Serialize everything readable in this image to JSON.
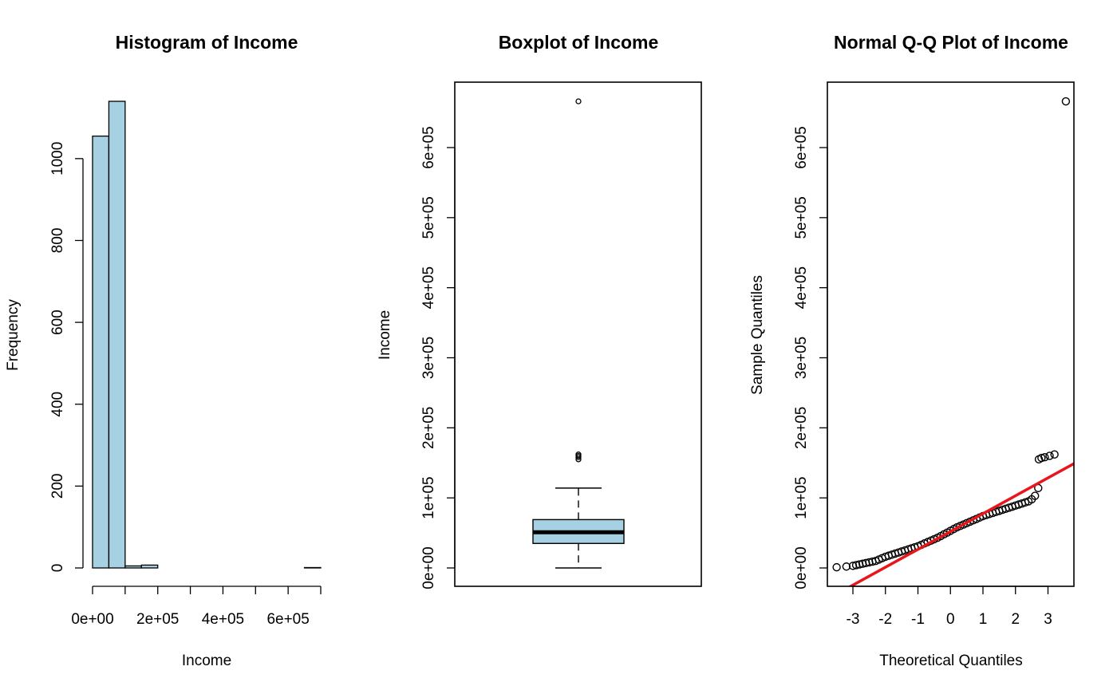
{
  "chart_data": [
    {
      "type": "bar",
      "title": "Histogram of Income",
      "xlabel": "Income",
      "ylabel": "Frequency",
      "bin_edges": [
        0,
        50000,
        100000,
        150000,
        200000,
        250000,
        300000,
        350000,
        400000,
        450000,
        500000,
        550000,
        600000,
        650000,
        700000
      ],
      "values": [
        1055,
        1140,
        5,
        7,
        0,
        0,
        0,
        0,
        0,
        0,
        0,
        0,
        0,
        1
      ],
      "xlim": [
        0,
        700000
      ],
      "ylim": [
        0,
        1140
      ],
      "x_ticks": [
        {
          "value": 0,
          "label": "0e+00"
        },
        {
          "value": 200000,
          "label": "2e+05"
        },
        {
          "value": 400000,
          "label": "4e+05"
        },
        {
          "value": 600000,
          "label": "6e+05"
        }
      ],
      "x_minor_ticks": [
        100000,
        300000,
        500000,
        700000
      ],
      "y_ticks": [
        {
          "value": 0,
          "label": "0"
        },
        {
          "value": 200,
          "label": "200"
        },
        {
          "value": 400,
          "label": "400"
        },
        {
          "value": 600,
          "label": "600"
        },
        {
          "value": 800,
          "label": "800"
        },
        {
          "value": 1000,
          "label": "1000"
        }
      ],
      "bar_color": "#A6D1E3"
    },
    {
      "type": "box",
      "title": "Boxplot of Income",
      "xlabel": "",
      "ylabel": "Income",
      "ylim": [
        -25000,
        695000
      ],
      "box": {
        "whisker_low": 0,
        "q1": 35000,
        "median": 51000,
        "q3": 69000,
        "whisker_high": 114000,
        "outliers": [
          155000,
          158000,
          160000,
          162000,
          666000
        ]
      },
      "y_ticks": [
        {
          "value": 0,
          "label": "0e+00"
        },
        {
          "value": 100000,
          "label": "1e+05"
        },
        {
          "value": 200000,
          "label": "2e+05"
        },
        {
          "value": 300000,
          "label": "3e+05"
        },
        {
          "value": 400000,
          "label": "4e+05"
        },
        {
          "value": 500000,
          "label": "5e+05"
        },
        {
          "value": 600000,
          "label": "6e+05"
        }
      ],
      "box_color": "#A6D1E3"
    },
    {
      "type": "scatter",
      "title": "Normal Q-Q Plot of Income",
      "xlabel": "Theoretical Quantiles",
      "ylabel": "Sample Quantiles",
      "xlim": [
        -3.75,
        3.85
      ],
      "ylim": [
        -25000,
        695000
      ],
      "x_ticks": [
        {
          "value": -3,
          "label": "-3"
        },
        {
          "value": -2,
          "label": "-2"
        },
        {
          "value": -1,
          "label": "-1"
        },
        {
          "value": 0,
          "label": "0"
        },
        {
          "value": 1,
          "label": "1"
        },
        {
          "value": 2,
          "label": "2"
        },
        {
          "value": 3,
          "label": "3"
        }
      ],
      "y_ticks": [
        {
          "value": 0,
          "label": "0e+00"
        },
        {
          "value": 100000,
          "label": "1e+05"
        },
        {
          "value": 200000,
          "label": "2e+05"
        },
        {
          "value": 300000,
          "label": "3e+05"
        },
        {
          "value": 400000,
          "label": "4e+05"
        },
        {
          "value": 500000,
          "label": "5e+05"
        },
        {
          "value": 600000,
          "label": "6e+05"
        }
      ],
      "reference_line": {
        "intercept": 52000,
        "slope": 25500,
        "color": "#E8161B"
      },
      "points": [
        {
          "x": -3.5,
          "y": 1000
        },
        {
          "x": -3.2,
          "y": 2000
        },
        {
          "x": -3.0,
          "y": 3000
        },
        {
          "x": -2.9,
          "y": 4000
        },
        {
          "x": -2.8,
          "y": 5000
        },
        {
          "x": -2.7,
          "y": 6000
        },
        {
          "x": -2.6,
          "y": 7000
        },
        {
          "x": -2.5,
          "y": 8000
        },
        {
          "x": -2.4,
          "y": 9000
        },
        {
          "x": -2.3,
          "y": 10000
        },
        {
          "x": -2.2,
          "y": 12000
        },
        {
          "x": -2.1,
          "y": 14000
        },
        {
          "x": -2.0,
          "y": 16000
        },
        {
          "x": -1.9,
          "y": 17500
        },
        {
          "x": -1.8,
          "y": 19000
        },
        {
          "x": -1.7,
          "y": 20500
        },
        {
          "x": -1.6,
          "y": 22000
        },
        {
          "x": -1.5,
          "y": 23500
        },
        {
          "x": -1.4,
          "y": 25000
        },
        {
          "x": -1.3,
          "y": 26500
        },
        {
          "x": -1.2,
          "y": 28000
        },
        {
          "x": -1.1,
          "y": 29500
        },
        {
          "x": -1.0,
          "y": 31000
        },
        {
          "x": -0.9,
          "y": 33000
        },
        {
          "x": -0.8,
          "y": 35000
        },
        {
          "x": -0.7,
          "y": 37000
        },
        {
          "x": -0.6,
          "y": 39000
        },
        {
          "x": -0.5,
          "y": 41000
        },
        {
          "x": -0.4,
          "y": 43000
        },
        {
          "x": -0.3,
          "y": 45500
        },
        {
          "x": -0.2,
          "y": 48000
        },
        {
          "x": -0.1,
          "y": 50500
        },
        {
          "x": 0.0,
          "y": 53000
        },
        {
          "x": 0.1,
          "y": 55500
        },
        {
          "x": 0.2,
          "y": 58000
        },
        {
          "x": 0.3,
          "y": 60000
        },
        {
          "x": 0.4,
          "y": 62000
        },
        {
          "x": 0.5,
          "y": 64000
        },
        {
          "x": 0.6,
          "y": 66000
        },
        {
          "x": 0.7,
          "y": 68000
        },
        {
          "x": 0.8,
          "y": 70000
        },
        {
          "x": 0.9,
          "y": 72000
        },
        {
          "x": 1.0,
          "y": 74000
        },
        {
          "x": 1.1,
          "y": 75500
        },
        {
          "x": 1.2,
          "y": 77000
        },
        {
          "x": 1.3,
          "y": 78500
        },
        {
          "x": 1.4,
          "y": 80000
        },
        {
          "x": 1.5,
          "y": 81500
        },
        {
          "x": 1.6,
          "y": 83000
        },
        {
          "x": 1.7,
          "y": 84500
        },
        {
          "x": 1.8,
          "y": 86000
        },
        {
          "x": 1.9,
          "y": 87500
        },
        {
          "x": 2.0,
          "y": 89000
        },
        {
          "x": 2.1,
          "y": 90500
        },
        {
          "x": 2.2,
          "y": 92000
        },
        {
          "x": 2.3,
          "y": 93500
        },
        {
          "x": 2.4,
          "y": 95000
        },
        {
          "x": 2.5,
          "y": 98000
        },
        {
          "x": 2.6,
          "y": 103000
        },
        {
          "x": 2.7,
          "y": 114000
        },
        {
          "x": 2.72,
          "y": 155000
        },
        {
          "x": 2.8,
          "y": 157000
        },
        {
          "x": 2.9,
          "y": 158000
        },
        {
          "x": 3.05,
          "y": 160000
        },
        {
          "x": 3.2,
          "y": 162000
        },
        {
          "x": 3.55,
          "y": 666000
        }
      ]
    }
  ]
}
